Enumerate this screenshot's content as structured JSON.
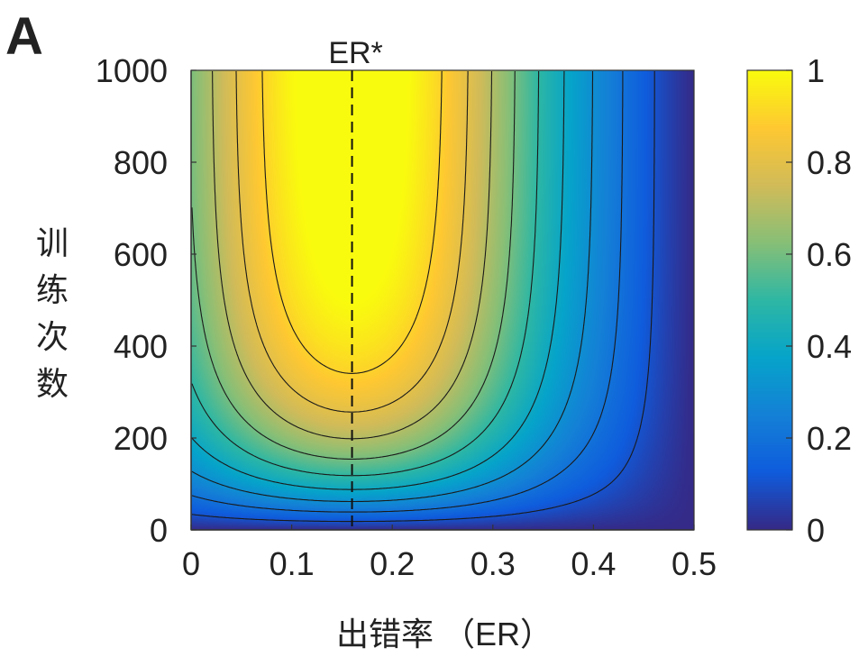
{
  "panel_label": "A",
  "chart_data": {
    "type": "heatmap",
    "title": "",
    "xlabel": "出错率 （ER）",
    "ylabel": "训练次数",
    "x_range": [
      0,
      0.5
    ],
    "y_range": [
      0,
      1000
    ],
    "x_ticks": [
      "0",
      "0.1",
      "0.2",
      "0.3",
      "0.4",
      "0.5"
    ],
    "y_ticks": [
      "0",
      "200",
      "400",
      "600",
      "800",
      "1000"
    ],
    "x_tick_values": [
      0,
      0.1,
      0.2,
      0.3,
      0.4,
      0.5
    ],
    "y_tick_values": [
      0,
      200,
      400,
      600,
      800,
      1000
    ],
    "colorbar": {
      "range": [
        0,
        1
      ],
      "ticks": [
        "0",
        "0.2",
        "0.4",
        "0.6",
        "0.8",
        "1"
      ],
      "tick_values": [
        0,
        0.2,
        0.4,
        0.6,
        0.8,
        1
      ],
      "colormap": "parula",
      "colors": [
        "#352a87",
        "#0f5cdd",
        "#1481d6",
        "#06a4ca",
        "#2eb7a4",
        "#87bf77",
        "#d1bb59",
        "#fec832",
        "#f9fb0e"
      ]
    },
    "annotation": {
      "label": "ER*",
      "x": 0.16,
      "style": "dashed vertical line"
    },
    "contour_levels": [
      0.1,
      0.2,
      0.3,
      0.4,
      0.5,
      0.6,
      0.7,
      0.8,
      0.9
    ],
    "grid": false,
    "peak": {
      "x": 0.16,
      "y": 1000,
      "value": 1
    }
  }
}
